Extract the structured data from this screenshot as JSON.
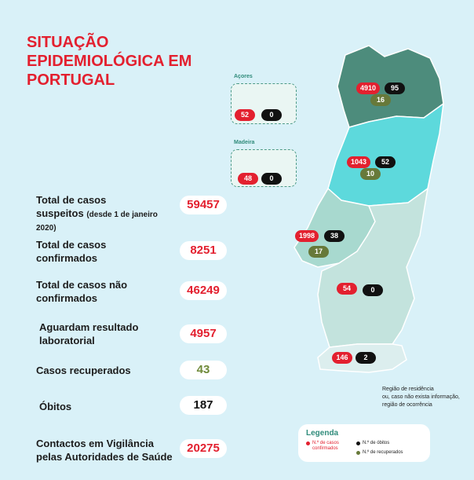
{
  "title": {
    "line1": "SITUAÇÃO",
    "line2": "EPIDEMIOLÓGICA EM",
    "line3": "PORTUGAL"
  },
  "stats": [
    {
      "label_lines": [
        "Total de casos",
        "suspeitos"
      ],
      "note": "(desde 1 de janeiro",
      "note2": "2020)",
      "value": "59457",
      "color": "#e3202f"
    },
    {
      "label_lines": [
        "Total de casos",
        "confirmados"
      ],
      "value": "8251",
      "color": "#e3202f"
    },
    {
      "label_lines": [
        "Total de casos não",
        "confirmados"
      ],
      "value": "46249",
      "color": "#e3202f"
    },
    {
      "label_lines": [
        "Aguardam resultado",
        "laboratorial"
      ],
      "value": "4957",
      "color": "#e3202f"
    },
    {
      "label_lines": [
        "Casos recuperados"
      ],
      "value": "43",
      "color": "#6f8a3a"
    },
    {
      "label_lines": [
        "Óbitos"
      ],
      "value": "187",
      "color": "#111111"
    },
    {
      "label_lines": [
        "Contactos em Vigilância",
        "pelas Autoridades de Saúde"
      ],
      "value": "20275",
      "color": "#e3202f"
    }
  ],
  "islands": {
    "azores": {
      "label": "Açores",
      "confirmed": "52",
      "deaths": "0"
    },
    "madeira": {
      "label": "Madeira",
      "confirmed": "48",
      "deaths": "0"
    }
  },
  "regions": {
    "norte": {
      "confirmed": "4910",
      "deaths": "95",
      "recovered": "16",
      "color": "#4d8c7c"
    },
    "centro": {
      "confirmed": "1043",
      "deaths": "52",
      "recovered": "10",
      "color": "#5dd9dc"
    },
    "lisboa": {
      "confirmed": "1998",
      "deaths": "38",
      "recovered": "17",
      "color": "#a8d9cf"
    },
    "alentejo": {
      "confirmed": "54",
      "deaths": "0",
      "color": "#c3e3dd"
    },
    "algarve": {
      "confirmed": "146",
      "deaths": "2",
      "color": "#dceeee"
    }
  },
  "footnote": {
    "line1": "Região de residência",
    "line2": "ou, caso não exista informação,",
    "line3": "região de ocorrência"
  },
  "legend": {
    "title": "Legenda",
    "confirmed_line1": "N.º de casos",
    "confirmed_line2": "confirmados",
    "deaths": "N.º de óbitos",
    "recovered": "N.º de recuperados"
  },
  "colors": {
    "accent_red": "#e3202f",
    "recovered_green": "#6f8a3a",
    "background": "#d9f1f8"
  }
}
